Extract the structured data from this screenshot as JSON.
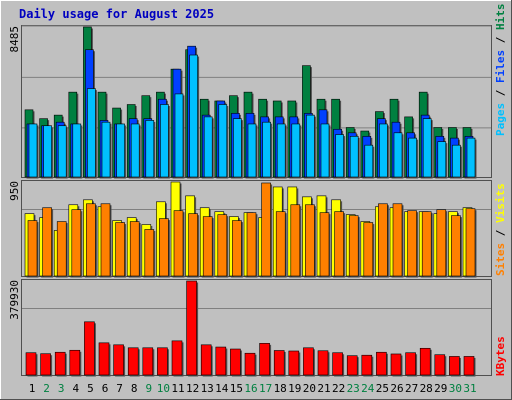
{
  "title": "Daily usage for August 2025",
  "colors": {
    "background": "#c0c0c0",
    "plot": "#c0c0c0",
    "title": "#0000c0",
    "hits": "#008040",
    "files": "#0040ff",
    "pages": "#00c0ff",
    "visits": "#ffff00",
    "sites": "#ff8000",
    "kbytes": "#ff0000",
    "weekday_label": "#000000",
    "weekend_label": "#008040"
  },
  "panel_labels": {
    "top": {
      "max": "8485",
      "pages": "Pages",
      "files": "Files",
      "hits": "Hits"
    },
    "middle": {
      "max": "950",
      "sites": "Sites",
      "visits": "Visits"
    },
    "bottom": {
      "max": "379930",
      "kbytes": "KBytes"
    }
  },
  "chart_data": [
    {
      "type": "bar",
      "title": "Daily usage for August 2025",
      "panel": "hits-files-pages",
      "categories": [
        "1",
        "2",
        "3",
        "4",
        "5",
        "6",
        "7",
        "8",
        "9",
        "10",
        "11",
        "12",
        "13",
        "14",
        "15",
        "16",
        "17",
        "18",
        "19",
        "20",
        "21",
        "22",
        "23",
        "24",
        "25",
        "26",
        "27",
        "28",
        "29",
        "30",
        "31"
      ],
      "weekend": [
        false,
        true,
        true,
        false,
        false,
        false,
        false,
        false,
        true,
        true,
        false,
        false,
        false,
        false,
        false,
        true,
        true,
        false,
        false,
        false,
        false,
        false,
        true,
        true,
        false,
        false,
        false,
        false,
        false,
        true,
        true
      ],
      "ylim": [
        0,
        8485
      ],
      "series": [
        {
          "name": "Hits",
          "values": [
            3800,
            3300,
            3500,
            4800,
            8485,
            4800,
            3900,
            4100,
            4600,
            4800,
            6100,
            7200,
            4400,
            4300,
            4600,
            4800,
            4400,
            4300,
            4300,
            6300,
            4400,
            4400,
            2800,
            2600,
            3700,
            4400,
            3400,
            4800,
            2800,
            2800,
            2800
          ]
        },
        {
          "name": "Files",
          "values": [
            3000,
            2900,
            3100,
            3000,
            7200,
            3200,
            3000,
            3300,
            3300,
            4400,
            6100,
            7400,
            3500,
            4300,
            3600,
            3600,
            3400,
            3400,
            3400,
            3600,
            3800,
            2700,
            2500,
            2300,
            3300,
            3100,
            2500,
            3500,
            2300,
            2200,
            2300
          ]
        },
        {
          "name": "Pages",
          "values": [
            3000,
            2900,
            2900,
            3000,
            5000,
            3100,
            3000,
            3000,
            3200,
            4100,
            4700,
            6900,
            3400,
            4100,
            3300,
            3000,
            3100,
            3000,
            3000,
            3500,
            3000,
            2400,
            2300,
            1800,
            3000,
            2500,
            2200,
            3300,
            2000,
            1800,
            2200
          ]
        }
      ]
    },
    {
      "type": "bar",
      "panel": "visits-sites",
      "ylim": [
        0,
        950
      ],
      "series": [
        {
          "name": "Visits",
          "values": [
            630,
            590,
            460,
            720,
            770,
            700,
            560,
            590,
            520,
            750,
            950,
            810,
            690,
            650,
            600,
            640,
            590,
            900,
            900,
            800,
            810,
            770,
            620,
            550,
            700,
            690,
            650,
            650,
            630,
            650,
            690
          ]
        },
        {
          "name": "Sites",
          "values": [
            560,
            690,
            550,
            670,
            730,
            730,
            540,
            550,
            470,
            580,
            660,
            630,
            600,
            620,
            560,
            640,
            940,
            650,
            720,
            720,
            640,
            650,
            610,
            540,
            730,
            730,
            660,
            650,
            670,
            610,
            680
          ]
        }
      ]
    },
    {
      "type": "bar",
      "panel": "kbytes",
      "ylim": [
        0,
        379930
      ],
      "series": [
        {
          "name": "KBytes",
          "values": [
            90000,
            86000,
            92000,
            100000,
            215000,
            130000,
            122000,
            110000,
            110000,
            110000,
            138000,
            379930,
            122000,
            113000,
            105000,
            88000,
            128000,
            99000,
            97000,
            110000,
            98000,
            90000,
            78000,
            80000,
            92000,
            85000,
            90000,
            108000,
            82000,
            75000,
            75000
          ]
        }
      ]
    }
  ]
}
